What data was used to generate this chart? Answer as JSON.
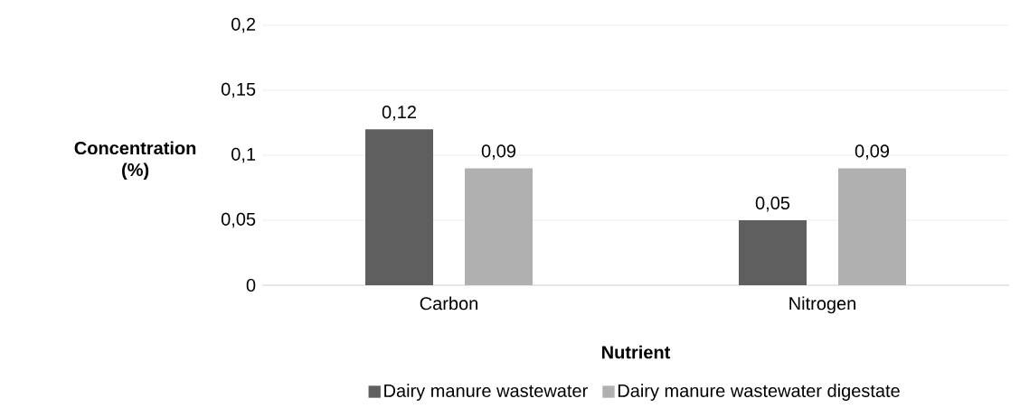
{
  "chart_data": {
    "type": "bar",
    "xlabel": "Nutrient",
    "ylabel": "Concentration (%)",
    "categories": [
      "Carbon",
      "Nitrogen"
    ],
    "series": [
      {
        "name": "Dairy manure wastewater",
        "color": "#5f5f5f",
        "values": [
          0.12,
          0.05
        ],
        "value_labels": [
          "0,12",
          "0,05"
        ]
      },
      {
        "name": "Dairy manure wastewater digestate",
        "color": "#b0b0b0",
        "values": [
          0.09,
          0.09
        ],
        "value_labels": [
          "0,09",
          "0,09"
        ]
      }
    ],
    "ylim": [
      0,
      0.2
    ],
    "yticks": [
      {
        "value": 0,
        "label": "0"
      },
      {
        "value": 0.05,
        "label": "0,05"
      },
      {
        "value": 0.1,
        "label": "0,1"
      },
      {
        "value": 0.15,
        "label": "0,15"
      },
      {
        "value": 0.2,
        "label": "0,2"
      }
    ],
    "grid": "y",
    "legend": "bottom"
  }
}
